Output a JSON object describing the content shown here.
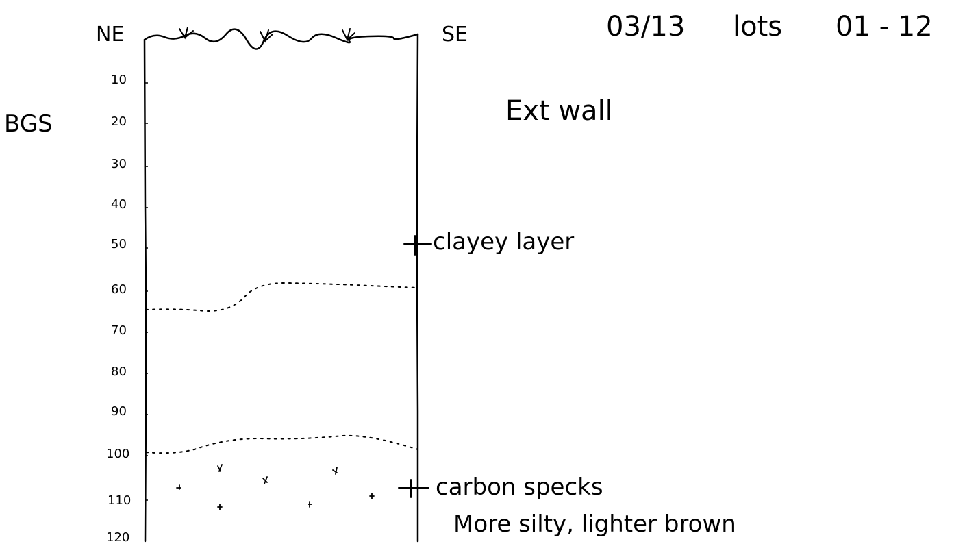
{
  "header": {
    "date": "03/13",
    "lots_label": "lots",
    "lots_range": "01 - 12",
    "wall_label": "Ext wall"
  },
  "profile": {
    "left_direction": "NE",
    "right_direction": "SE",
    "depth_axis_label": "BGS",
    "depth_ticks": [
      "10",
      "20",
      "30",
      "40",
      "50",
      "60",
      "70",
      "80",
      "90",
      "100",
      "110",
      "120"
    ],
    "annotations": [
      {
        "id": "clayey",
        "text": "clayey layer"
      },
      {
        "id": "carbon",
        "text": "carbon specks"
      },
      {
        "id": "silty",
        "text": "More silty, lighter brown"
      }
    ]
  }
}
